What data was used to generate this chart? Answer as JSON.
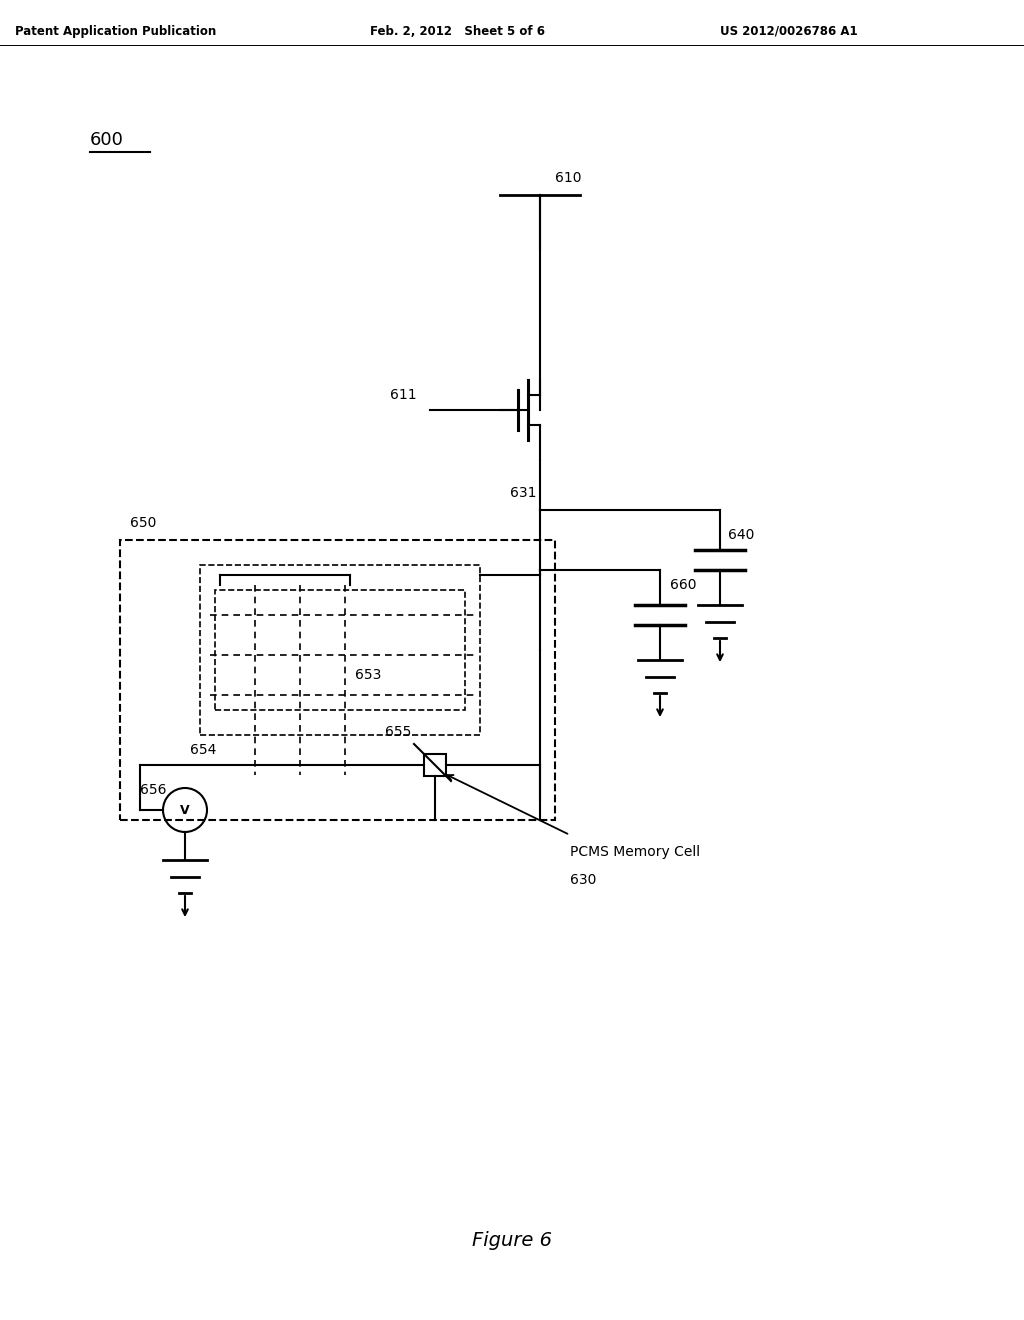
{
  "title": "Figure 6",
  "header_left": "Patent Application Publication",
  "header_center": "Feb. 2, 2012   Sheet 5 of 6",
  "header_right": "US 2012/0026786 A1",
  "fig_label": "600",
  "background_color": "#ffffff",
  "line_color": "#000000"
}
